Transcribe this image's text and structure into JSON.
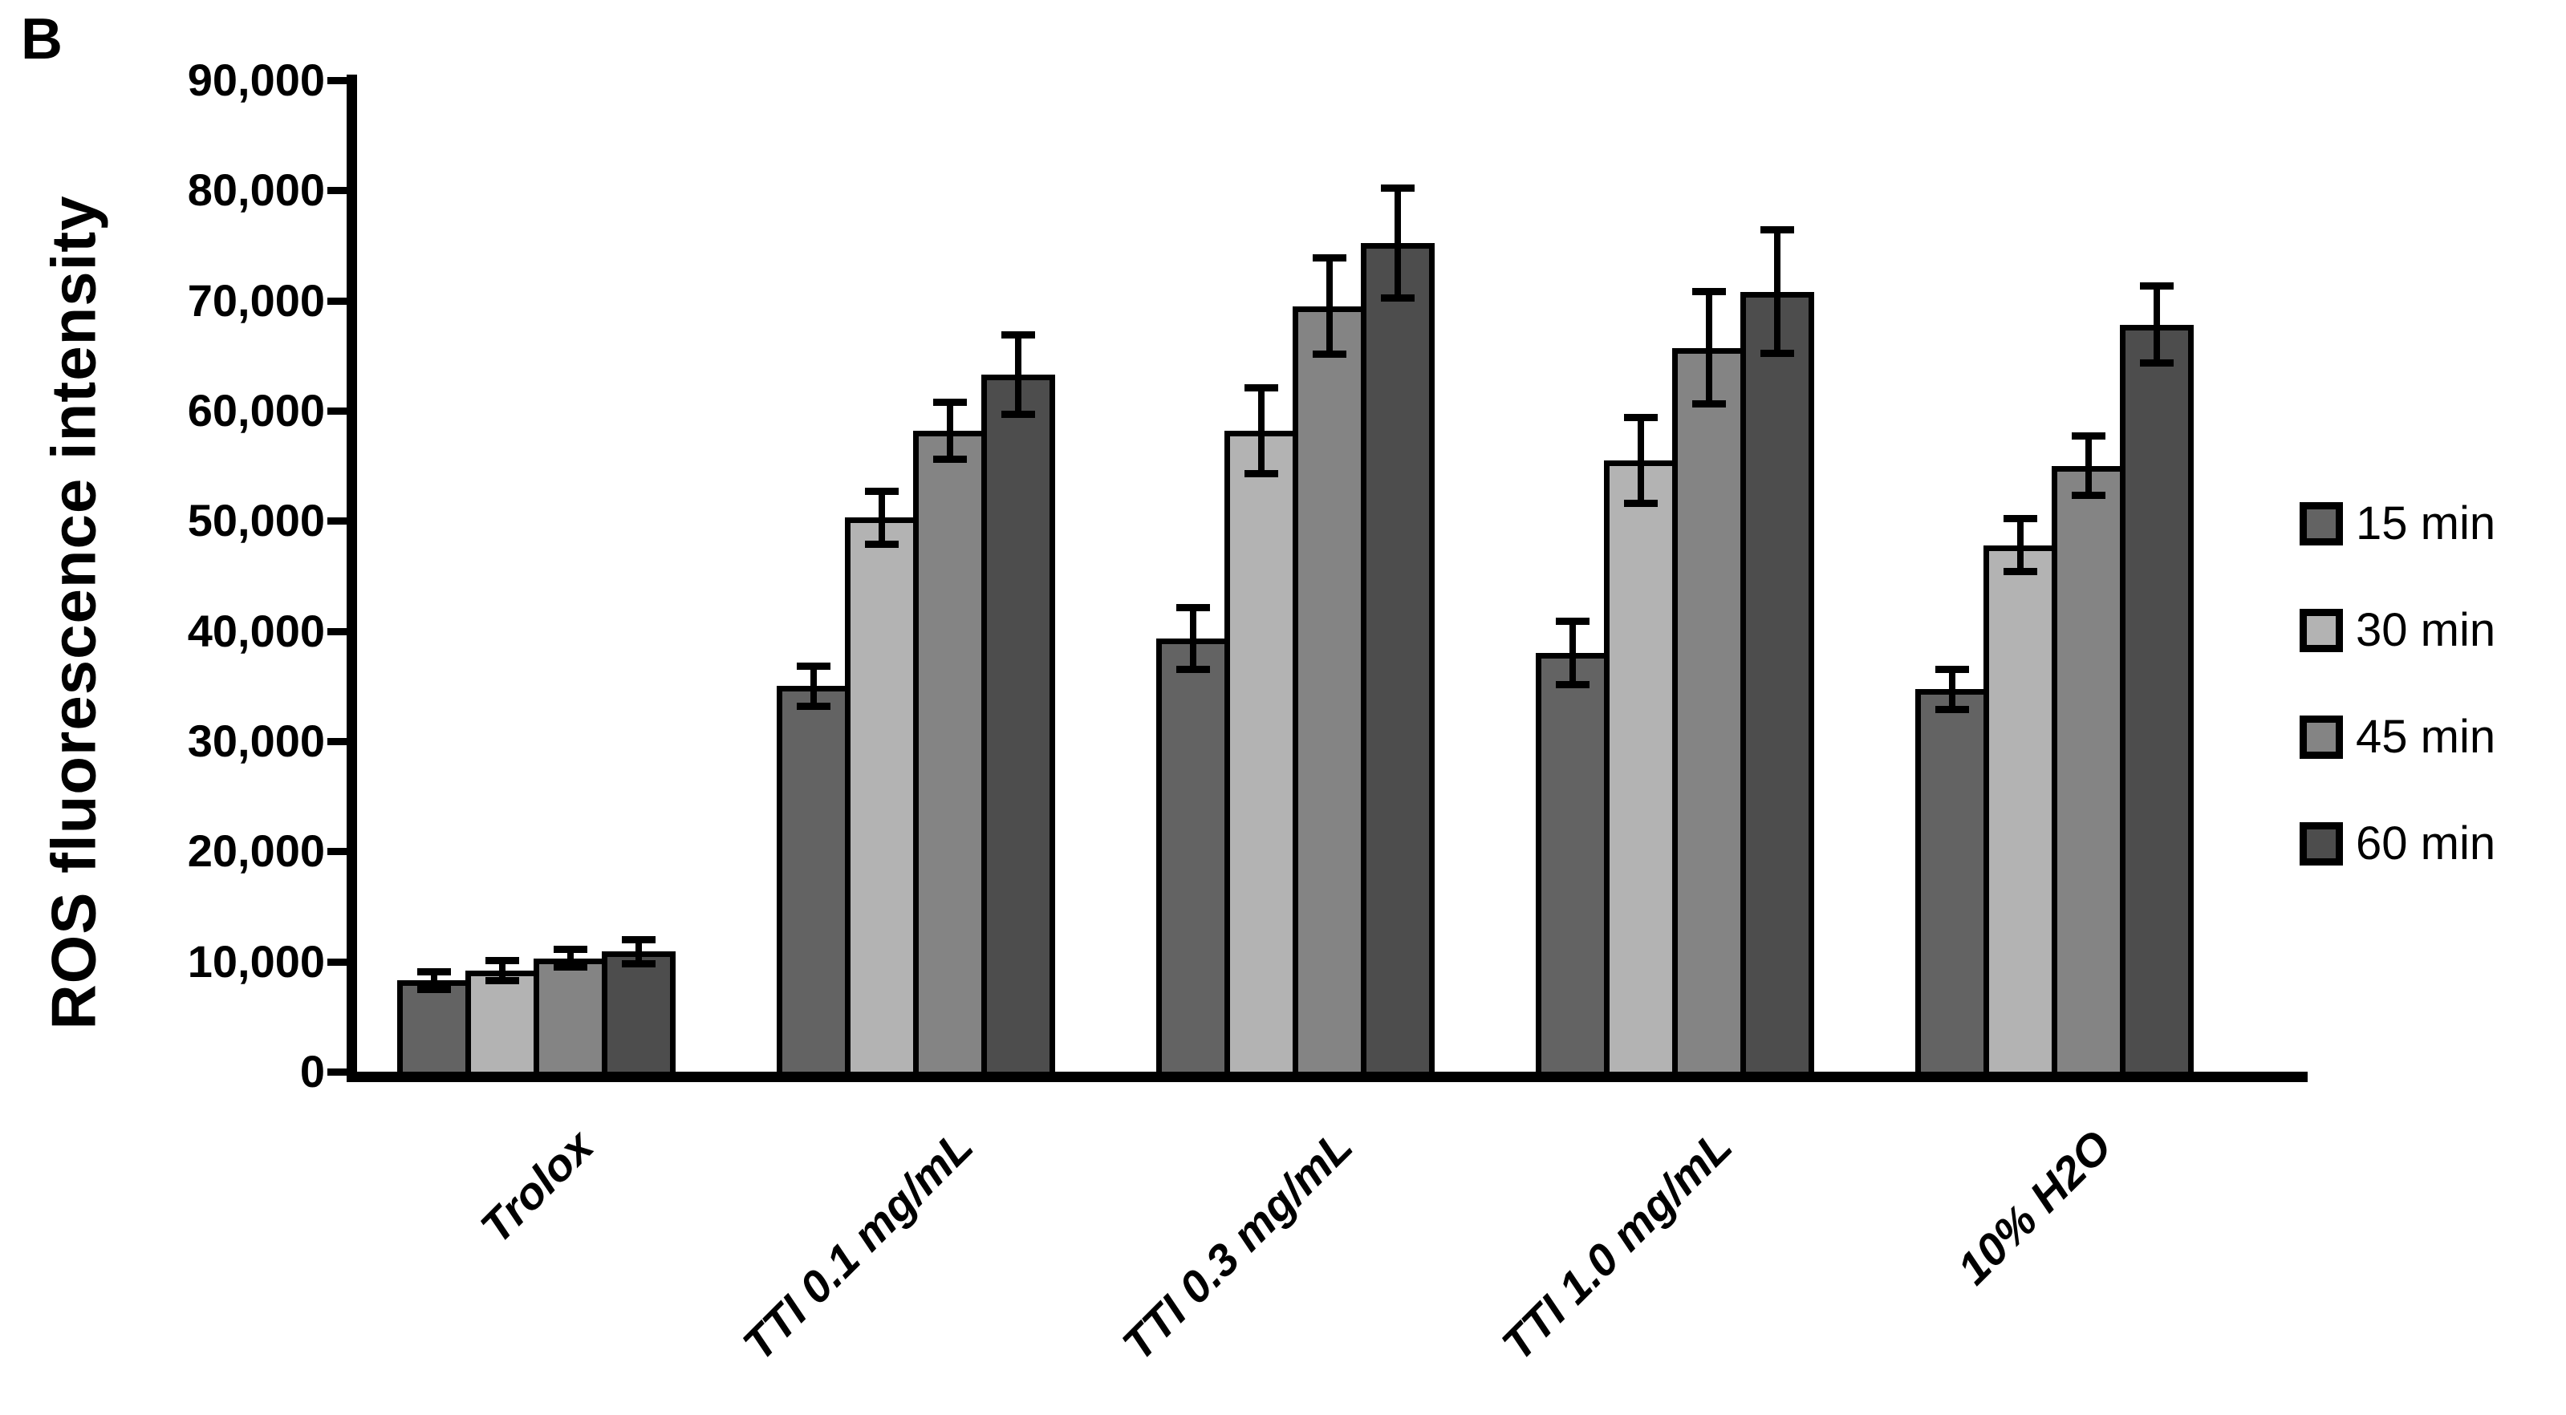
{
  "panel_label": "B",
  "chart_data": {
    "type": "bar",
    "title": "",
    "panel": "B",
    "xlabel": "",
    "ylabel": "ROS fluorescence intensity",
    "ylim": [
      0,
      90000
    ],
    "grid": false,
    "legend_position": "right",
    "y_tick_labels": [
      "0",
      "10,000",
      "20,000",
      "30,000",
      "40,000",
      "50,000",
      "60,000",
      "70,000",
      "80,000",
      "90,000"
    ],
    "y_tick_values": [
      0,
      10000,
      20000,
      30000,
      40000,
      50000,
      60000,
      70000,
      80000,
      90000
    ],
    "categories": [
      "Trolox",
      "TTI 0.1 mg/mL",
      "TTI 0.3 mg/mL",
      "TTI 1.0 mg/mL",
      "10% H2O"
    ],
    "series": [
      {
        "name": "15 min",
        "color": "#636363",
        "values": [
          8300,
          35000,
          39300,
          38000,
          34700
        ],
        "errors": [
          800,
          1800,
          2800,
          2900,
          1800
        ]
      },
      {
        "name": "30 min",
        "color": "#b3b3b3",
        "values": [
          9200,
          50300,
          58200,
          55500,
          47800
        ],
        "errors": [
          900,
          2400,
          3900,
          3900,
          2400
        ]
      },
      {
        "name": "45 min",
        "color": "#848484",
        "values": [
          10300,
          58200,
          69500,
          65700,
          55000
        ],
        "errors": [
          800,
          2600,
          4400,
          5100,
          2700
        ]
      },
      {
        "name": "60 min",
        "color": "#4d4d4d",
        "values": [
          10900,
          63300,
          75200,
          70800,
          67800
        ],
        "errors": [
          1100,
          3600,
          5000,
          5600,
          3500
        ]
      }
    ],
    "error_bars": true,
    "bar_border_color": "#000000",
    "axis_color": "#000000",
    "background_color": "#ffffff"
  }
}
